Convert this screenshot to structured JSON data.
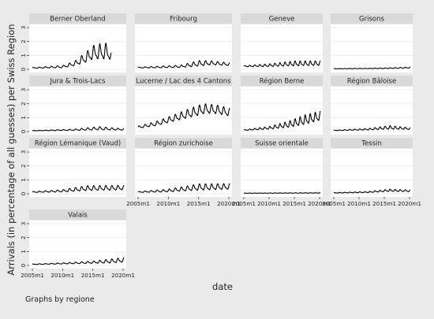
{
  "chart_data": {
    "type": "line",
    "xlabel": "date",
    "ylabel": "Arrivals (in percentage of all guesses) per Swiss Region",
    "note": "Graphs by regione",
    "x_range": [
      "2005m1",
      "2020m1"
    ],
    "ylim": [
      0,
      3
    ],
    "y_ticks": [
      0,
      1,
      2,
      3
    ],
    "y_tick_labels": [
      "0",
      "1",
      "2",
      "3"
    ],
    "x_ticks": [
      "2005m1",
      "2010m1",
      "2015m1",
      "2020m1"
    ],
    "x_tick_labels": [
      "2005m1",
      "2010m1",
      "2015m1",
      "2020m1"
    ],
    "colors": {
      "background": "#eaeaea",
      "plot": "#ffffff",
      "strip": "#d9d9d9",
      "line": "#000000",
      "grid": "#eeeeee"
    },
    "panels": [
      {
        "title": "Berner Oberland",
        "start_year": 2005.0,
        "end_year": 2018.0,
        "trend": [
          [
            2005,
            0.1
          ],
          [
            2010,
            0.18
          ],
          [
            2012,
            0.4
          ],
          [
            2014,
            0.85
          ],
          [
            2015,
            1.15
          ],
          [
            2017,
            1.25
          ],
          [
            2018,
            1.05
          ]
        ],
        "amp": [
          [
            2005,
            0.03
          ],
          [
            2010,
            0.1
          ],
          [
            2012,
            0.2
          ],
          [
            2015,
            0.6
          ],
          [
            2017,
            0.75
          ],
          [
            2018,
            0.5
          ]
        ]
      },
      {
        "title": "Fribourg",
        "start_year": 2005.0,
        "end_year": 2020.2,
        "trend": [
          [
            2005,
            0.12
          ],
          [
            2012,
            0.2
          ],
          [
            2015,
            0.4
          ],
          [
            2017,
            0.45
          ],
          [
            2020.2,
            0.35
          ]
        ],
        "amp": [
          [
            2005,
            0.04
          ],
          [
            2012,
            0.1
          ],
          [
            2015,
            0.25
          ],
          [
            2017,
            0.18
          ],
          [
            2020.2,
            0.12
          ]
        ]
      },
      {
        "title": "Geneve",
        "start_year": 2005.0,
        "end_year": 2020.2,
        "trend": [
          [
            2005,
            0.22
          ],
          [
            2010,
            0.28
          ],
          [
            2015,
            0.4
          ],
          [
            2020.2,
            0.42
          ]
        ],
        "amp": [
          [
            2005,
            0.05
          ],
          [
            2010,
            0.12
          ],
          [
            2015,
            0.22
          ],
          [
            2020.2,
            0.2
          ]
        ]
      },
      {
        "title": "Grisons",
        "start_year": 2005.0,
        "end_year": 2020.2,
        "trend": [
          [
            2005,
            0.04
          ],
          [
            2015,
            0.07
          ],
          [
            2020.2,
            0.12
          ]
        ],
        "amp": [
          [
            2005,
            0.01
          ],
          [
            2015,
            0.03
          ],
          [
            2020.2,
            0.05
          ]
        ]
      },
      {
        "title": "Jura & Trois-Lacs",
        "start_year": 2005.0,
        "end_year": 2020.2,
        "trend": [
          [
            2005,
            0.06
          ],
          [
            2012,
            0.12
          ],
          [
            2016,
            0.22
          ],
          [
            2020.2,
            0.14
          ]
        ],
        "amp": [
          [
            2005,
            0.01
          ],
          [
            2012,
            0.06
          ],
          [
            2016,
            0.15
          ],
          [
            2020.2,
            0.06
          ]
        ]
      },
      {
        "title": "Lucerne / Lac des 4 Cantons",
        "start_year": 2005.0,
        "end_year": 2020.2,
        "trend": [
          [
            2005,
            0.3
          ],
          [
            2008,
            0.55
          ],
          [
            2011,
            0.95
          ],
          [
            2014,
            1.35
          ],
          [
            2016,
            1.6
          ],
          [
            2018,
            1.55
          ],
          [
            2020.2,
            1.35
          ]
        ],
        "amp": [
          [
            2005,
            0.1
          ],
          [
            2010,
            0.25
          ],
          [
            2015,
            0.45
          ],
          [
            2020.2,
            0.35
          ]
        ]
      },
      {
        "title": "Région Berne",
        "start_year": 2005.0,
        "end_year": 2020.2,
        "trend": [
          [
            2005,
            0.1
          ],
          [
            2010,
            0.25
          ],
          [
            2014,
            0.5
          ],
          [
            2017,
            0.8
          ],
          [
            2020.2,
            1.1
          ]
        ],
        "amp": [
          [
            2005,
            0.03
          ],
          [
            2010,
            0.12
          ],
          [
            2014,
            0.28
          ],
          [
            2017,
            0.42
          ],
          [
            2020.2,
            0.4
          ]
        ]
      },
      {
        "title": "Région Bâloise",
        "start_year": 2005.0,
        "end_year": 2020.2,
        "trend": [
          [
            2005,
            0.08
          ],
          [
            2012,
            0.16
          ],
          [
            2016,
            0.28
          ],
          [
            2020.2,
            0.2
          ]
        ],
        "amp": [
          [
            2005,
            0.02
          ],
          [
            2012,
            0.07
          ],
          [
            2016,
            0.16
          ],
          [
            2020.2,
            0.08
          ]
        ]
      },
      {
        "title": "Région Lémanique (Vaud)",
        "start_year": 2005.0,
        "end_year": 2020.2,
        "trend": [
          [
            2005,
            0.12
          ],
          [
            2010,
            0.2
          ],
          [
            2014,
            0.38
          ],
          [
            2020.2,
            0.42
          ]
        ],
        "amp": [
          [
            2005,
            0.04
          ],
          [
            2010,
            0.1
          ],
          [
            2014,
            0.22
          ],
          [
            2020.2,
            0.2
          ]
        ]
      },
      {
        "title": "Région zurichoise",
        "start_year": 2005.0,
        "end_year": 2020.2,
        "trend": [
          [
            2005,
            0.12
          ],
          [
            2010,
            0.22
          ],
          [
            2015,
            0.45
          ],
          [
            2020.2,
            0.5
          ]
        ],
        "amp": [
          [
            2005,
            0.04
          ],
          [
            2010,
            0.12
          ],
          [
            2015,
            0.28
          ],
          [
            2020.2,
            0.25
          ]
        ]
      },
      {
        "title": "Suisse orientale",
        "start_year": 2005.0,
        "end_year": 2020.2,
        "trend": [
          [
            2005,
            0.04
          ],
          [
            2020.2,
            0.06
          ]
        ],
        "amp": [
          [
            2005,
            0.01
          ],
          [
            2020.2,
            0.02
          ]
        ]
      },
      {
        "title": "Tessin",
        "start_year": 2005.0,
        "end_year": 2020.2,
        "trend": [
          [
            2005,
            0.06
          ],
          [
            2012,
            0.12
          ],
          [
            2016,
            0.24
          ],
          [
            2020.2,
            0.2
          ]
        ],
        "amp": [
          [
            2005,
            0.02
          ],
          [
            2012,
            0.05
          ],
          [
            2016,
            0.1
          ],
          [
            2020.2,
            0.08
          ]
        ]
      },
      {
        "title": "Valais",
        "start_year": 2005.0,
        "end_year": 2020.2,
        "trend": [
          [
            2005,
            0.08
          ],
          [
            2010,
            0.14
          ],
          [
            2015,
            0.22
          ],
          [
            2018,
            0.3
          ],
          [
            2020.2,
            0.38
          ]
        ],
        "amp": [
          [
            2005,
            0.02
          ],
          [
            2010,
            0.05
          ],
          [
            2015,
            0.1
          ],
          [
            2018,
            0.18
          ],
          [
            2020.2,
            0.2
          ]
        ]
      }
    ]
  }
}
